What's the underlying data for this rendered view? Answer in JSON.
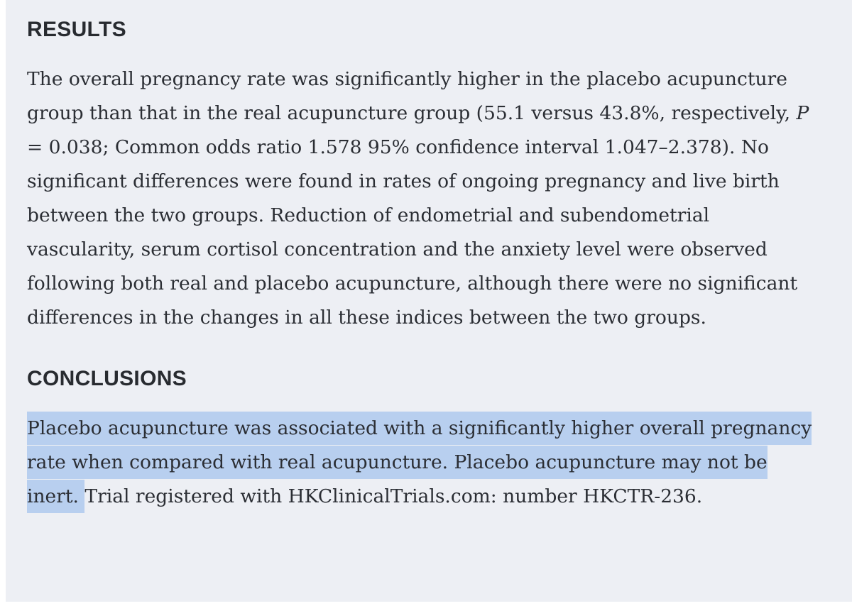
{
  "colors": {
    "panel_background": "#edeff4",
    "page_background": "#ffffff",
    "text": "#2b2e34",
    "heading": "#282b30",
    "highlight": "#b8cfef"
  },
  "results": {
    "heading": "RESULTS",
    "body": {
      "before_p": "The overall pregnancy rate was significantly higher in the placebo acupuncture group than that in the real acupuncture group (55.1 versus 43.8%, respectively, ",
      "p_symbol": "P",
      "after_p": " = 0.038; Common odds ratio 1.578 95% confidence interval 1.047–2.378). No significant differences were found in rates of ongoing pregnancy and live birth between the two groups. Reduction of endometrial and subendometrial vascularity, serum cortisol concentration and the anxiety level were observed following both real and placebo acupuncture, although there were no significant differences in the changes in all these indices between the two groups."
    }
  },
  "conclusions": {
    "heading": "CONCLUSIONS",
    "body": {
      "highlighted": "Placebo acupuncture was associated with a significantly higher overall pregnancy rate when compared with real acupuncture. Placebo acupuncture may not be inert. ",
      "rest": "Trial registered with HKClinicalTrials.com: number HKCTR-236."
    }
  }
}
